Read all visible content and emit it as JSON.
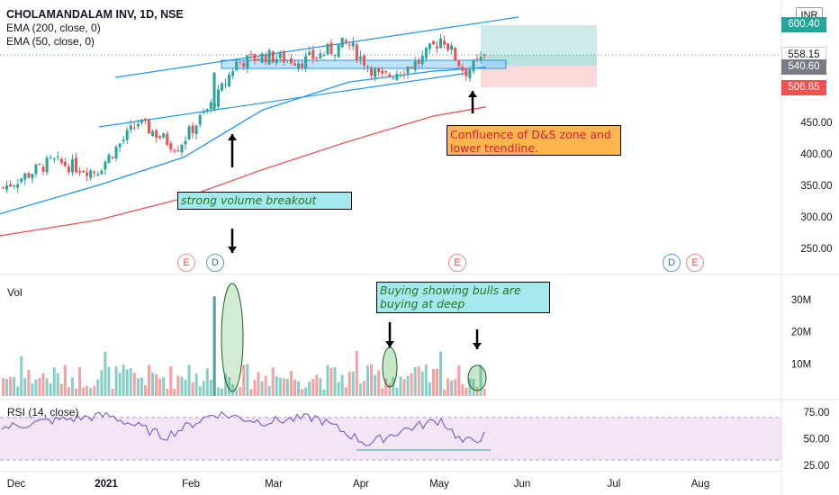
{
  "legend": {
    "title": "CHOLAMANDALAM INV, 1D, NSE",
    "ema200": "EMA (200, close, 0)",
    "ema50": "EMA (50, close, 0)"
  },
  "currency": "INR",
  "price_tags": [
    {
      "label": "600.40",
      "color": "#26a69a"
    },
    {
      "label": "558.15",
      "color": "#ffffff",
      "text_color": "#131722"
    },
    {
      "label": "540.60",
      "color": "#787b86"
    },
    {
      "label": "506.65",
      "color": "#ef5350"
    }
  ],
  "annotations": {
    "confluence": "Confluence of D&S zone and lower trendline.",
    "breakout": "strong volume breakout",
    "buying_line1": "Buying showing bulls are",
    "buying_line2": "buying at deep"
  },
  "events": [
    "E",
    "D",
    "E",
    "D",
    "E"
  ],
  "panes": {
    "volume_title": "Vol",
    "rsi_title": "RSI (14, close)"
  },
  "colors": {
    "up": "#26a69a",
    "down": "#ef5350",
    "ema50": "#2196f3",
    "ema200": "#ef5350",
    "trendline": "#2196f3",
    "rsi": "#7e57c2",
    "rsi_band": "#f3e5f5"
  },
  "chart_data": [
    {
      "type": "candlestick",
      "title": "CHOLAMANDALAM INV, 1D, NSE",
      "x_ticks": [
        "Dec",
        "2021",
        "Feb",
        "Mar",
        "Apr",
        "May",
        "Jun",
        "Jul",
        "Aug"
      ],
      "y_ticks": [
        250,
        300,
        350,
        400,
        450,
        506.65,
        540.6,
        558.15,
        600.4
      ],
      "y_range": [
        230,
        620
      ],
      "series": [
        {
          "name": "EMA (200, close, 0)",
          "type": "line",
          "x": [
            "2020-11-27",
            "2021-01-01",
            "2021-02-01",
            "2021-03-01",
            "2021-04-01",
            "2021-05-01",
            "2021-05-20"
          ],
          "values": [
            270,
            295,
            330,
            375,
            420,
            460,
            475
          ]
        },
        {
          "name": "EMA (50, close, 0)",
          "type": "line",
          "x": [
            "2020-11-27",
            "2021-01-01",
            "2021-02-01",
            "2021-03-01",
            "2021-04-01",
            "2021-05-01",
            "2021-05-20"
          ],
          "values": [
            305,
            350,
            395,
            470,
            515,
            532,
            538
          ]
        }
      ],
      "close": [
        {
          "date": "2020-11-27",
          "value": 345
        },
        {
          "date": "2020-12-15",
          "value": 388
        },
        {
          "date": "2020-12-31",
          "value": 372
        },
        {
          "date": "2021-01-15",
          "value": 450
        },
        {
          "date": "2021-01-29",
          "value": 410
        },
        {
          "date": "2021-02-12",
          "value": 488
        },
        {
          "date": "2021-02-19",
          "value": 545
        },
        {
          "date": "2021-03-01",
          "value": 556
        },
        {
          "date": "2021-03-15",
          "value": 548
        },
        {
          "date": "2021-03-31",
          "value": 575
        },
        {
          "date": "2021-04-12",
          "value": 520
        },
        {
          "date": "2021-04-26",
          "value": 548
        },
        {
          "date": "2021-05-04",
          "value": 585
        },
        {
          "date": "2021-05-12",
          "value": 530
        },
        {
          "date": "2021-05-20",
          "value": 558
        }
      ],
      "zones": {
        "target": [
          558.15,
          600.4
        ],
        "stop": [
          506.65,
          540.6
        ]
      },
      "grid": false
    },
    {
      "type": "bar",
      "title": "Vol",
      "y_ticks": [
        "10M",
        "20M",
        "30M"
      ],
      "y_range": [
        0,
        35
      ],
      "breakout_volume_millions": 31
    },
    {
      "type": "line",
      "title": "RSI (14, close)",
      "y_ticks": [
        25,
        50,
        75
      ],
      "y_range": [
        25,
        75
      ],
      "band": [
        30,
        70
      ],
      "x": [
        "2020-11-27",
        "2020-12-15",
        "2021-01-05",
        "2021-01-25",
        "2021-02-12",
        "2021-03-01",
        "2021-03-20",
        "2021-04-08",
        "2021-04-20",
        "2021-05-04",
        "2021-05-12",
        "2021-05-20"
      ],
      "values": [
        60,
        67,
        72,
        52,
        74,
        66,
        70,
        45,
        58,
        68,
        46,
        53
      ]
    }
  ]
}
